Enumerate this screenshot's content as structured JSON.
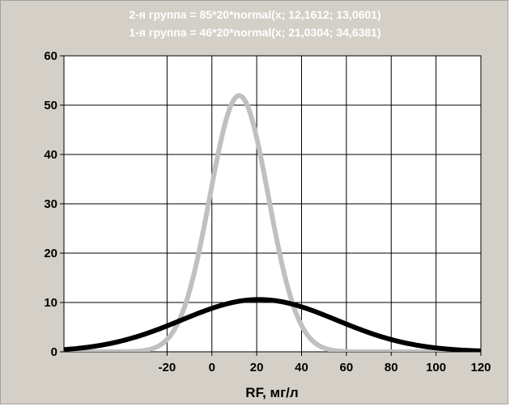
{
  "chart_data": {
    "type": "line",
    "title": "",
    "xlabel": "RF, мг/л",
    "ylabel": "",
    "xlim": [
      -66,
      120
    ],
    "ylim": [
      0,
      60
    ],
    "x_ticks": [
      -20,
      0,
      20,
      40,
      60,
      80,
      100,
      120
    ],
    "y_ticks": [
      0,
      10,
      20,
      30,
      40,
      50,
      60
    ],
    "x_tick_labels": [
      "-20",
      "0",
      "20",
      "40",
      "60",
      "80",
      "100",
      "120"
    ],
    "y_tick_labels": [
      "0",
      "10",
      "20",
      "30",
      "40",
      "50",
      "60"
    ],
    "grid": true,
    "legend_position": "top-center",
    "series": [
      {
        "name": "2-я группа = 85*20*normal(x; 12,1612; 13,0601)",
        "color": "#c0c0c0",
        "count": 85,
        "bin_width": 20,
        "mean": 12.1612,
        "sd": 13.0601
      },
      {
        "name": "1-я группа = 46*20*normal(x; 21,0304; 34,6381)",
        "color": "#000000",
        "count": 46,
        "bin_width": 20,
        "mean": 21.0304,
        "sd": 34.6381
      }
    ]
  }
}
